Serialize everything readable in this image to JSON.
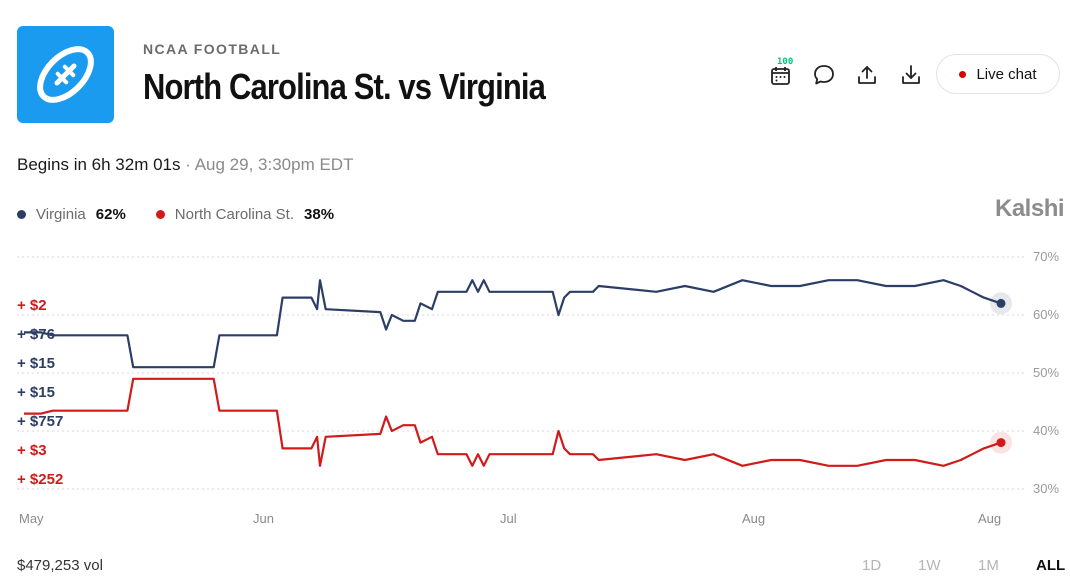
{
  "header": {
    "category": "NCAA FOOTBALL",
    "title": "North Carolina St. vs Virginia",
    "badge_count": "100",
    "live_chat_label": "Live chat"
  },
  "event": {
    "countdown": "Begins in 6h 32m 01s",
    "separator": "·",
    "datetime": "Aug 29, 3:30pm EDT"
  },
  "legend": [
    {
      "name": "Virginia",
      "pct": "62%",
      "color": "#2c3e66"
    },
    {
      "name": "North Carolina St.",
      "pct": "38%",
      "color": "#d11a1a"
    }
  ],
  "brand": "Kalshi",
  "icons": [
    "football-icon",
    "calendar-icon",
    "comment-icon",
    "share-icon",
    "download-icon"
  ],
  "trades": [
    {
      "label": "+ $2",
      "color": "#d11a1a"
    },
    {
      "label": "+ $76",
      "color": "#2c3e66"
    },
    {
      "label": "+ $15",
      "color": "#2c3e66"
    },
    {
      "label": "+ $15",
      "color": "#2c3e66"
    },
    {
      "label": "+ $757",
      "color": "#2c3e66"
    },
    {
      "label": "+ $3",
      "color": "#d11a1a"
    },
    {
      "label": "+ $252",
      "color": "#d11a1a"
    }
  ],
  "footer": {
    "volume": "$479,253 vol",
    "ranges": [
      "1D",
      "1W",
      "1M",
      "ALL"
    ],
    "active_range": "ALL"
  },
  "chart_data": {
    "type": "line",
    "x_tick_labels": [
      "May",
      "Jun",
      "Jul",
      "Aug",
      "Aug"
    ],
    "y_tick_labels": [
      "70%",
      "60%",
      "50%",
      "40%",
      "30%"
    ],
    "ylim": [
      28,
      72
    ],
    "y_ticks": [
      70,
      60,
      50,
      40,
      30
    ],
    "grid": true,
    "series": [
      {
        "name": "Virginia",
        "color": "#2c3e66",
        "end_value": 62,
        "points": [
          [
            0,
            57
          ],
          [
            3,
            57
          ],
          [
            5,
            56.5
          ],
          [
            6,
            56.5
          ],
          [
            18,
            56.5
          ],
          [
            19,
            51
          ],
          [
            33,
            51
          ],
          [
            34,
            56.5
          ],
          [
            44,
            56.5
          ],
          [
            45,
            63
          ],
          [
            50,
            63
          ],
          [
            51,
            61
          ],
          [
            51.5,
            66
          ],
          [
            52.5,
            61
          ],
          [
            62,
            60.5
          ],
          [
            63,
            57.5
          ],
          [
            64,
            60
          ],
          [
            66,
            59
          ],
          [
            68,
            59
          ],
          [
            69,
            62
          ],
          [
            71,
            61
          ],
          [
            72,
            64
          ],
          [
            77,
            64
          ],
          [
            78,
            66
          ],
          [
            79,
            64
          ],
          [
            80,
            66
          ],
          [
            81,
            64
          ],
          [
            92,
            64
          ],
          [
            93,
            60
          ],
          [
            94,
            63
          ],
          [
            95,
            64
          ],
          [
            99,
            64
          ],
          [
            100,
            65
          ],
          [
            110,
            64
          ],
          [
            115,
            65
          ],
          [
            120,
            64
          ],
          [
            125,
            66
          ],
          [
            130,
            65
          ],
          [
            135,
            65
          ],
          [
            140,
            66
          ],
          [
            145,
            66
          ],
          [
            150,
            65
          ],
          [
            155,
            65
          ],
          [
            160,
            66
          ],
          [
            163,
            65
          ],
          [
            165,
            64
          ],
          [
            167,
            63
          ],
          [
            170,
            62
          ]
        ]
      },
      {
        "name": "North Carolina St.",
        "color": "#d11a1a",
        "end_value": 38,
        "points": [
          [
            0,
            43
          ],
          [
            3,
            43
          ],
          [
            5,
            43.5
          ],
          [
            6,
            43.5
          ],
          [
            18,
            43.5
          ],
          [
            19,
            49
          ],
          [
            33,
            49
          ],
          [
            34,
            43.5
          ],
          [
            44,
            43.5
          ],
          [
            45,
            37
          ],
          [
            50,
            37
          ],
          [
            51,
            39
          ],
          [
            51.5,
            34
          ],
          [
            52.5,
            39
          ],
          [
            62,
            39.5
          ],
          [
            63,
            42.5
          ],
          [
            64,
            40
          ],
          [
            66,
            41
          ],
          [
            68,
            41
          ],
          [
            69,
            38
          ],
          [
            71,
            39
          ],
          [
            72,
            36
          ],
          [
            77,
            36
          ],
          [
            78,
            34
          ],
          [
            79,
            36
          ],
          [
            80,
            34
          ],
          [
            81,
            36
          ],
          [
            92,
            36
          ],
          [
            93,
            40
          ],
          [
            94,
            37
          ],
          [
            95,
            36
          ],
          [
            99,
            36
          ],
          [
            100,
            35
          ],
          [
            110,
            36
          ],
          [
            115,
            35
          ],
          [
            120,
            36
          ],
          [
            125,
            34
          ],
          [
            130,
            35
          ],
          [
            135,
            35
          ],
          [
            140,
            34
          ],
          [
            145,
            34
          ],
          [
            150,
            35
          ],
          [
            155,
            35
          ],
          [
            160,
            34
          ],
          [
            163,
            35
          ],
          [
            165,
            36
          ],
          [
            167,
            37
          ],
          [
            170,
            38
          ]
        ]
      }
    ]
  }
}
